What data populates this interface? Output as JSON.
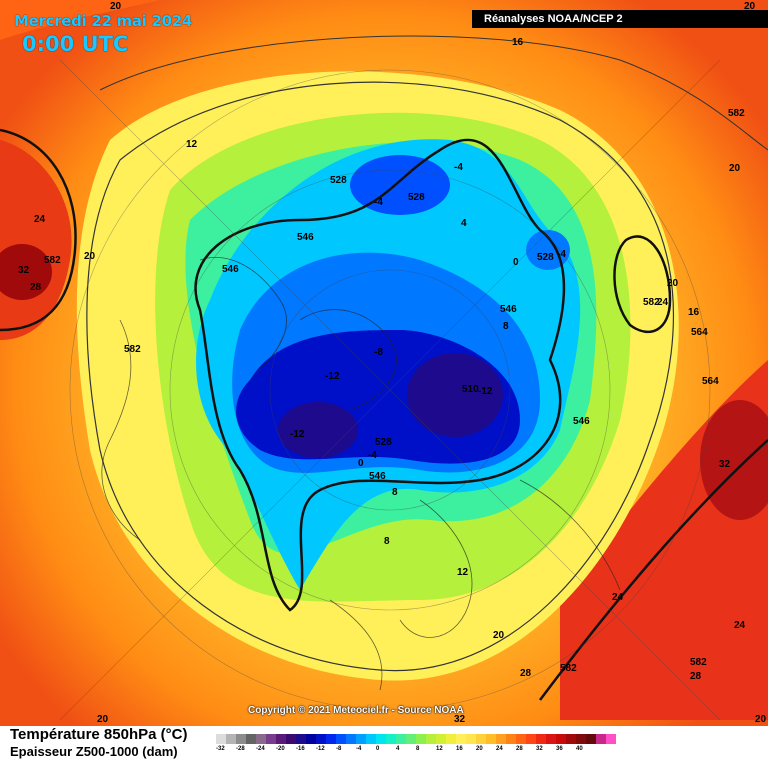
{
  "header": {
    "date": "Mercredi 22 mai 2024",
    "time": "0:00 UTC",
    "source": "Réanalyses NOAA/NCEP 2",
    "copyright": "Copyright © 2021 Meteociel.fr - Source NOAA"
  },
  "legend": {
    "title": "Température 850hPa (°C)",
    "subtitle": "Epaisseur Z500-1000 (dam)",
    "scale_colors": [
      "#dcdcdc",
      "#b4b4b4",
      "#8c8c8c",
      "#646464",
      "#8a6a8a",
      "#7a3c8c",
      "#5a1a7a",
      "#3c0a6e",
      "#1e0a8c",
      "#0000a0",
      "#0010c8",
      "#0028f0",
      "#0050ff",
      "#0078ff",
      "#00a0ff",
      "#00c8ff",
      "#00e6f0",
      "#14f0c8",
      "#3cf0a0",
      "#64f078",
      "#8cf050",
      "#b4f03c",
      "#d2f032",
      "#f0f03c",
      "#fff05a",
      "#ffe650",
      "#ffd23c",
      "#ffbe28",
      "#ffa01e",
      "#ff8214",
      "#ff6414",
      "#ff4614",
      "#f02814",
      "#dc1414",
      "#c80a0a",
      "#a00a0a",
      "#820a0a",
      "#640a0a",
      "#c8288c",
      "#ff50c8"
    ],
    "scale_ticks": [
      "-32",
      "-28",
      "-24",
      "-20",
      "-16",
      "-12",
      "-8",
      "-4",
      "0",
      "4",
      "8",
      "12",
      "16",
      "20",
      "24",
      "28",
      "32",
      "36",
      "40"
    ]
  },
  "contour_labels": [
    {
      "text": "20"
    },
    {
      "text": "16"
    },
    {
      "text": "12"
    },
    {
      "text": "-4"
    },
    {
      "text": "528"
    },
    {
      "text": "-4"
    },
    {
      "text": "528"
    },
    {
      "text": "4"
    },
    {
      "text": "546"
    },
    {
      "text": "528"
    },
    {
      "text": "0"
    },
    {
      "text": "-4"
    },
    {
      "text": "24"
    },
    {
      "text": "546"
    },
    {
      "text": "20"
    },
    {
      "text": "582"
    },
    {
      "text": "32"
    },
    {
      "text": "28"
    },
    {
      "text": "582"
    },
    {
      "text": "20"
    },
    {
      "text": "546"
    },
    {
      "text": "8"
    },
    {
      "text": "-8"
    },
    {
      "text": "-12"
    },
    {
      "text": "16"
    },
    {
      "text": "564"
    },
    {
      "text": "582"
    },
    {
      "text": "24"
    },
    {
      "text": "564"
    },
    {
      "text": "-12"
    },
    {
      "text": "510"
    },
    {
      "text": "-12"
    },
    {
      "text": "528"
    },
    {
      "text": "546"
    },
    {
      "text": "-4"
    },
    {
      "text": "0"
    },
    {
      "text": "546"
    },
    {
      "text": "32"
    },
    {
      "text": "8"
    },
    {
      "text": "8"
    },
    {
      "text": "12"
    },
    {
      "text": "24"
    },
    {
      "text": "24"
    },
    {
      "text": "20"
    },
    {
      "text": "28"
    },
    {
      "text": "582"
    },
    {
      "text": "28"
    },
    {
      "text": "582"
    },
    {
      "text": "32"
    },
    {
      "text": "20"
    },
    {
      "text": "20"
    },
    {
      "text": "20"
    },
    {
      "text": "582"
    },
    {
      "text": "20"
    }
  ]
}
